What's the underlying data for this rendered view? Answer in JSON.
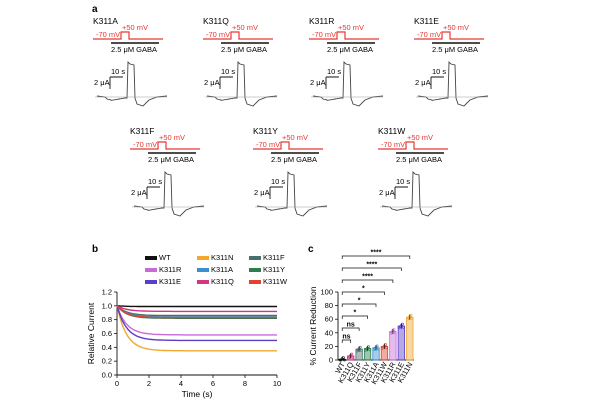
{
  "panel_a": {
    "label": "a",
    "protocol": {
      "hold": "-70 mV",
      "step": "+50 mV",
      "gaba": "2.5 μM GABA"
    },
    "scale": {
      "current": "2 μA",
      "time": "10 s"
    },
    "mutants_row1": [
      "K311A",
      "K311Q",
      "K311R",
      "K311E"
    ],
    "mutants_row2": [
      "K311F",
      "K311Y",
      "K311W"
    ]
  },
  "chart_data": [
    {
      "panel": "b",
      "type": "line",
      "title": "",
      "xlabel": "Time (s)",
      "ylabel": "Relative Current",
      "xlim": [
        0,
        10
      ],
      "ylim": [
        0.0,
        1.2
      ],
      "xticks": [
        "0",
        "2",
        "4",
        "6",
        "8",
        "10"
      ],
      "yticks": [
        "0.0",
        "0.2",
        "0.4",
        "0.6",
        "0.8",
        "1.0",
        "1.2"
      ],
      "legend": [
        "WT",
        "K311N",
        "K311F",
        "K311R",
        "K311A",
        "K311Y",
        "K311E",
        "K311Q",
        "K311W"
      ],
      "series": [
        {
          "name": "WT",
          "color": "#111111",
          "steady": 0.99
        },
        {
          "name": "K311N",
          "color": "#f0a830",
          "steady": 0.35
        },
        {
          "name": "K311F",
          "color": "#4a6f6a",
          "steady": 0.86
        },
        {
          "name": "K311R",
          "color": "#c86ad8",
          "steady": 0.58
        },
        {
          "name": "K311A",
          "color": "#3a8fcf",
          "steady": 0.84
        },
        {
          "name": "K311Y",
          "color": "#2e7d4f",
          "steady": 0.82
        },
        {
          "name": "K311E",
          "color": "#5b3fc9",
          "steady": 0.5
        },
        {
          "name": "K311Q",
          "color": "#d63384",
          "steady": 0.92
        },
        {
          "name": "K311W",
          "color": "#e0442c",
          "steady": 0.83
        }
      ]
    },
    {
      "panel": "c",
      "type": "bar",
      "title": "",
      "xlabel": "",
      "ylabel": "% Current Reduction",
      "ylim": [
        0,
        100
      ],
      "yticks": [
        "0",
        "20",
        "40",
        "60",
        "80",
        "100"
      ],
      "categories": [
        "WT",
        "K311Q",
        "K311F",
        "K311Y",
        "K311A",
        "K311W",
        "K311R",
        "K311E",
        "K311N"
      ],
      "values": [
        1,
        6,
        16,
        17,
        18,
        20,
        42,
        50,
        63
      ],
      "colors": [
        "#111111",
        "#d63384",
        "#4a6f6a",
        "#2e7d4f",
        "#3a8fcf",
        "#e0442c",
        "#c86ad8",
        "#5b3fc9",
        "#f0a830"
      ],
      "significance": [
        "ns",
        "ns",
        "*",
        "*",
        "*",
        "****",
        "****",
        "****"
      ]
    }
  ],
  "panel_labels": {
    "b": "b",
    "c": "c"
  }
}
